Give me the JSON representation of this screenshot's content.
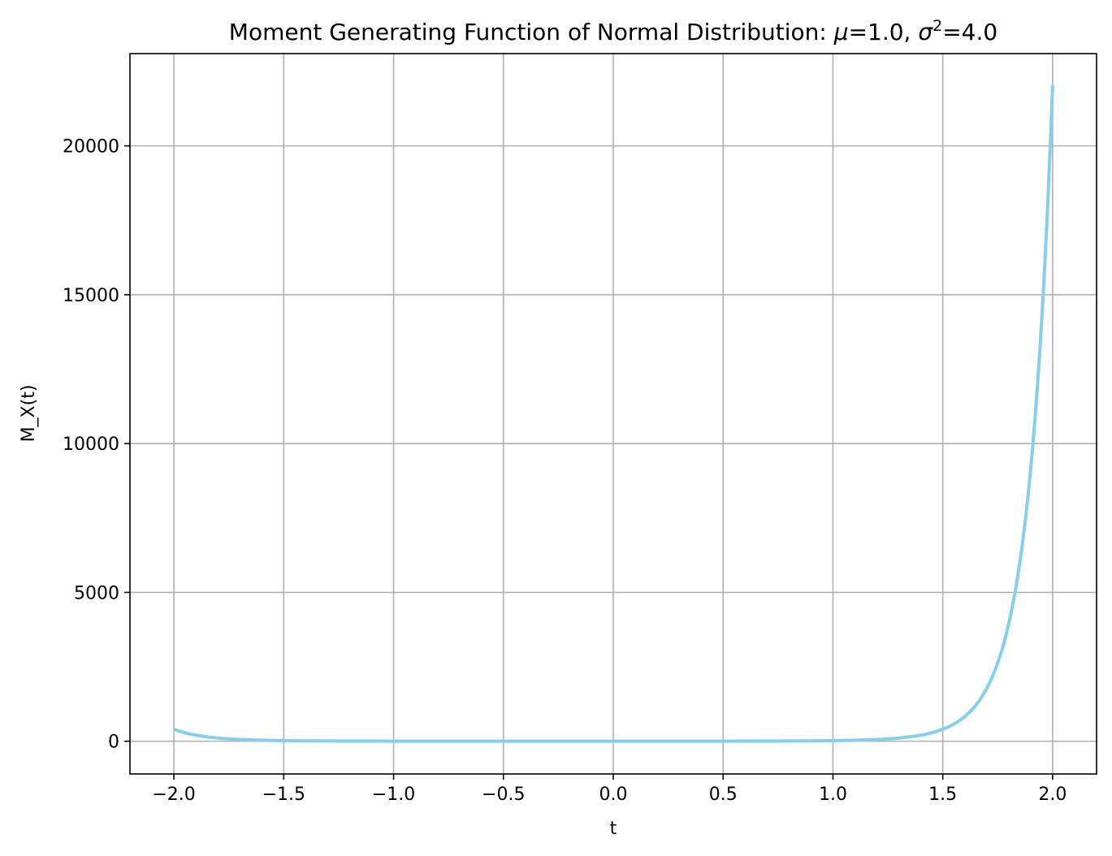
{
  "chart_data": {
    "type": "line",
    "title": {
      "prefix": "Moment Generating Function of Normal Distribution: ",
      "mu_symbol": "μ",
      "mu_value_text": "=1.0, ",
      "sigma_symbol": "σ",
      "sigma_exponent": "2",
      "sigma_value_text": "=4.0"
    },
    "xlabel": "t",
    "ylabel": "M_X(t)",
    "xlim": [
      -2.2,
      2.2
    ],
    "ylim": [
      -1100,
      23100
    ],
    "xticks": [
      -2.0,
      -1.5,
      -1.0,
      -0.5,
      0.0,
      0.5,
      1.0,
      1.5,
      2.0
    ],
    "xtick_labels": [
      "−2.0",
      "−1.5",
      "−1.0",
      "−0.5",
      "0.0",
      "0.5",
      "1.0",
      "1.5",
      "2.0"
    ],
    "yticks": [
      0,
      5000,
      10000,
      15000,
      20000
    ],
    "ytick_labels": [
      "0",
      "5000",
      "10000",
      "15000",
      "20000"
    ],
    "grid": true,
    "series": [
      {
        "name": "M_X(t)",
        "color": "#87CEEB",
        "mu": 1.0,
        "sigma2": 4.0,
        "t_range": [
          -2.0,
          2.0
        ]
      }
    ]
  }
}
